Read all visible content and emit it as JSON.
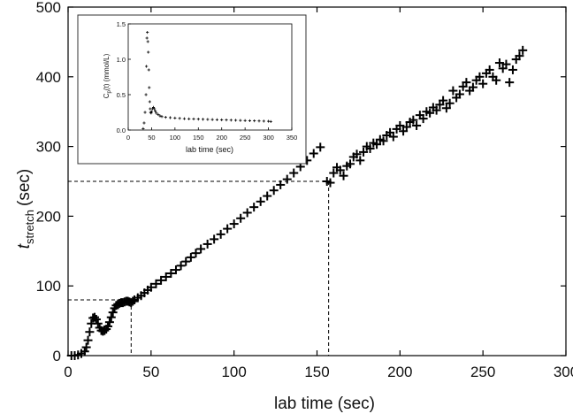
{
  "chart_data": [
    {
      "type": "scatter",
      "title": "",
      "xlabel": "lab time (sec)",
      "ylabel": "t",
      "ylabel_subscript": "stretch",
      "ylabel_unit": "(sec)",
      "xlim": [
        0,
        300
      ],
      "ylim": [
        0,
        500
      ],
      "xticks": [
        "0",
        "50",
        "100",
        "150",
        "200",
        "250",
        "300"
      ],
      "yticks": [
        "0",
        "100",
        "200",
        "300",
        "400",
        "500"
      ],
      "grid": false,
      "marker": "+",
      "series": [
        {
          "x": [
            2,
            4,
            6,
            8,
            10,
            11,
            12,
            13,
            14,
            15,
            16,
            17,
            18,
            19,
            20,
            21,
            22,
            23,
            24,
            25,
            26,
            27,
            28,
            29,
            30,
            31,
            32,
            33,
            34,
            35,
            36,
            37,
            38,
            39,
            40,
            42,
            44,
            46,
            48,
            50,
            53,
            56,
            59,
            62,
            65,
            68,
            71,
            74,
            77,
            80,
            84,
            88,
            92,
            96,
            100,
            104,
            108,
            112,
            116,
            120,
            124,
            128,
            132,
            136,
            140,
            144,
            148,
            152,
            156,
            158,
            160,
            162,
            164,
            166,
            168,
            170,
            172,
            174,
            176,
            178,
            180,
            182,
            184,
            186,
            188,
            190,
            192,
            194,
            196,
            198,
            200,
            202,
            204,
            206,
            208,
            210,
            212,
            214,
            216,
            218,
            220,
            222,
            224,
            226,
            228,
            230,
            232,
            234,
            236,
            238,
            240,
            242,
            244,
            246,
            248,
            250,
            252,
            254,
            256,
            258,
            260,
            262,
            264,
            266,
            268,
            270,
            272,
            274
          ],
          "y": [
            0,
            0,
            1,
            3,
            6,
            12,
            22,
            34,
            46,
            54,
            55,
            52,
            46,
            40,
            36,
            35,
            36,
            38,
            42,
            48,
            55,
            62,
            68,
            72,
            74,
            75,
            76,
            76,
            77,
            78,
            78,
            77,
            76,
            78,
            80,
            83,
            86,
            90,
            94,
            98,
            103,
            108,
            113,
            118,
            123,
            129,
            135,
            141,
            147,
            153,
            160,
            167,
            174,
            182,
            189,
            197,
            205,
            213,
            221,
            229,
            237,
            245,
            253,
            262,
            271,
            280,
            290,
            299,
            250,
            248,
            262,
            270,
            266,
            258,
            272,
            275,
            285,
            289,
            280,
            292,
            300,
            297,
            305,
            303,
            310,
            308,
            316,
            320,
            314,
            325,
            330,
            322,
            328,
            335,
            338,
            330,
            345,
            340,
            350,
            348,
            356,
            352,
            360,
            366,
            355,
            362,
            380,
            370,
            375,
            386,
            392,
            380,
            385,
            395,
            400,
            390,
            405,
            410,
            400,
            395,
            420,
            412,
            418,
            392,
            410,
            425,
            430,
            438
          ]
        }
      ],
      "reference_lines": [
        {
          "x": 38,
          "y": 80
        },
        {
          "x": 157,
          "y": 250
        }
      ]
    },
    {
      "type": "scatter",
      "title": "",
      "xlabel": "lab time (sec)",
      "ylabel": "C",
      "ylabel_subscript": "p",
      "ylabel_rest": "(t) (mmol/L)",
      "xlim": [
        0,
        350
      ],
      "ylim": [
        0,
        1.5
      ],
      "xticks": [
        "0",
        "50",
        "100",
        "150",
        "200",
        "250",
        "300",
        "350"
      ],
      "yticks": [
        "0.0",
        "0.5",
        "1.0",
        "1.5"
      ],
      "marker": "+",
      "series": [
        {
          "x": [
            32,
            34,
            36,
            38,
            39,
            40,
            41,
            42,
            43,
            44,
            45,
            46,
            47,
            48,
            49,
            50,
            52,
            54,
            56,
            58,
            60,
            64,
            68,
            72,
            80,
            90,
            100,
            110,
            120,
            130,
            140,
            150,
            160,
            170,
            180,
            190,
            200,
            210,
            220,
            230,
            240,
            250,
            260,
            270,
            280,
            290,
            300,
            305
          ],
          "y": [
            0.02,
            0.1,
            0.25,
            0.5,
            0.9,
            1.3,
            1.38,
            1.25,
            1.1,
            0.85,
            0.6,
            0.4,
            0.3,
            0.25,
            0.24,
            0.26,
            0.3,
            0.32,
            0.3,
            0.27,
            0.24,
            0.22,
            0.2,
            0.19,
            0.18,
            0.175,
            0.17,
            0.165,
            0.16,
            0.158,
            0.156,
            0.154,
            0.152,
            0.15,
            0.148,
            0.146,
            0.144,
            0.142,
            0.14,
            0.138,
            0.136,
            0.134,
            0.132,
            0.13,
            0.128,
            0.126,
            0.124,
            0.12
          ]
        }
      ]
    }
  ]
}
